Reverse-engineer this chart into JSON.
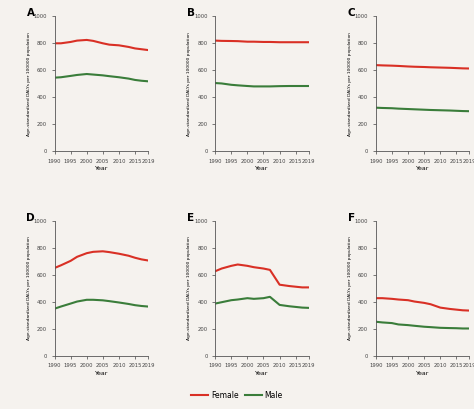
{
  "years": [
    1990,
    1992,
    1995,
    1997,
    2000,
    2002,
    2005,
    2007,
    2010,
    2013,
    2015,
    2017,
    2019
  ],
  "panels": {
    "A": {
      "female": [
        800,
        800,
        810,
        820,
        825,
        818,
        800,
        790,
        785,
        773,
        762,
        756,
        750
      ],
      "male": [
        545,
        548,
        558,
        565,
        572,
        568,
        562,
        556,
        548,
        538,
        528,
        522,
        518
      ]
    },
    "B": {
      "female": [
        820,
        818,
        817,
        816,
        812,
        812,
        810,
        810,
        808,
        808,
        808,
        808,
        808
      ],
      "male": [
        505,
        502,
        492,
        488,
        483,
        480,
        480,
        480,
        482,
        483,
        483,
        483,
        483
      ]
    },
    "C": {
      "female": [
        638,
        636,
        634,
        632,
        628,
        626,
        624,
        622,
        620,
        618,
        616,
        614,
        613
      ],
      "male": [
        322,
        320,
        318,
        315,
        312,
        310,
        307,
        305,
        303,
        301,
        299,
        297,
        296
      ]
    },
    "D": {
      "female": [
        652,
        672,
        705,
        735,
        762,
        772,
        776,
        770,
        758,
        743,
        728,
        716,
        708
      ],
      "male": [
        350,
        366,
        388,
        403,
        416,
        416,
        412,
        406,
        396,
        385,
        376,
        370,
        366
      ]
    },
    "E": {
      "female": [
        628,
        648,
        668,
        678,
        668,
        658,
        648,
        638,
        528,
        518,
        513,
        508,
        508
      ],
      "male": [
        388,
        398,
        413,
        418,
        428,
        423,
        428,
        438,
        378,
        368,
        363,
        358,
        356
      ]
    },
    "F": {
      "female": [
        428,
        428,
        423,
        418,
        413,
        403,
        393,
        383,
        358,
        348,
        343,
        338,
        336
      ],
      "male": [
        253,
        248,
        243,
        233,
        228,
        223,
        216,
        213,
        208,
        206,
        205,
        203,
        203
      ]
    }
  },
  "female_color": "#d93025",
  "male_color": "#3a7d3a",
  "ylabel": "Age-standardized DALYs per 100000 population",
  "xlabel": "Year",
  "ylim": [
    0,
    1000
  ],
  "yticks": [
    0,
    200,
    400,
    600,
    800,
    1000
  ],
  "xticks": [
    1990,
    1995,
    2000,
    2005,
    2010,
    2015,
    2019
  ],
  "xtick_labels": [
    "1990",
    "1995",
    "2000",
    "2005",
    "2010",
    "2015",
    "2019"
  ],
  "panel_labels": [
    "A",
    "B",
    "C",
    "D",
    "E",
    "F"
  ],
  "bg_color": "#f5f2ee",
  "linewidth": 1.5
}
